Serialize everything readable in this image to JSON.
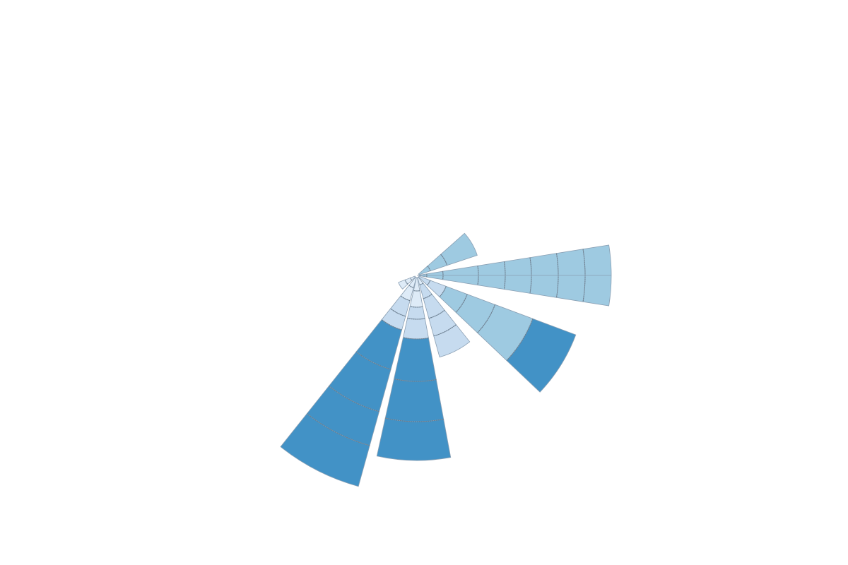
{
  "chart_data": {
    "type": "rose",
    "title": "",
    "legend": "none",
    "grid": false,
    "angle_unit": "degrees_clockwise_from_east",
    "radius_unit": "relative",
    "colors": {
      "dark": "#4292c6",
      "mid": "#9ecae1",
      "light": "#c6dbef",
      "pale": "#deebf7",
      "outline": "#8a9fb3",
      "band_separator": "#6b7d8d"
    },
    "wedges": [
      {
        "center_deg": -30,
        "width_deg": 23,
        "bands": [
          {
            "r": 20,
            "color": "mid"
          },
          {
            "r": 45,
            "color": "mid"
          },
          {
            "r": 90,
            "color": "mid"
          }
        ]
      },
      {
        "center_deg": 0,
        "width_deg": 18,
        "bands": [
          {
            "r": 14,
            "color": "mid"
          },
          {
            "r": 37,
            "color": "mid"
          },
          {
            "r": 87,
            "color": "mid"
          },
          {
            "r": 125,
            "color": "mid"
          },
          {
            "r": 162,
            "color": "mid"
          },
          {
            "r": 200,
            "color": "mid"
          },
          {
            "r": 238,
            "color": "mid"
          },
          {
            "r": 275,
            "color": "mid"
          }
        ]
      },
      {
        "center_deg": 32,
        "width_deg": 23,
        "bands": [
          {
            "r": 20,
            "color": "light"
          },
          {
            "r": 44,
            "color": "light"
          },
          {
            "r": 76,
            "color": "mid"
          },
          {
            "r": 118,
            "color": "mid"
          },
          {
            "r": 175,
            "color": "mid"
          },
          {
            "r": 240,
            "color": "dark"
          }
        ]
      },
      {
        "center_deg": 63,
        "width_deg": 23,
        "bands": [
          {
            "r": 14,
            "color": "pale"
          },
          {
            "r": 34,
            "color": "light"
          },
          {
            "r": 63,
            "color": "light"
          },
          {
            "r": 89,
            "color": "light"
          },
          {
            "r": 120,
            "color": "light"
          }
        ]
      },
      {
        "center_deg": 91,
        "width_deg": 23,
        "bands": [
          {
            "r": 22,
            "color": "pale"
          },
          {
            "r": 45,
            "color": "pale"
          },
          {
            "r": 62,
            "color": "light"
          },
          {
            "r": 90,
            "color": "light"
          },
          {
            "r": 150,
            "color": "dark"
          },
          {
            "r": 207,
            "color": "dark"
          },
          {
            "r": 262,
            "color": "dark"
          }
        ]
      },
      {
        "center_deg": 117,
        "width_deg": 23,
        "bands": [
          {
            "r": 18,
            "color": "pale"
          },
          {
            "r": 37,
            "color": "pale"
          },
          {
            "r": 60,
            "color": "light"
          },
          {
            "r": 80,
            "color": "light"
          },
          {
            "r": 138,
            "color": "dark"
          },
          {
            "r": 200,
            "color": "dark"
          },
          {
            "r": 250,
            "color": "dark"
          },
          {
            "r": 310,
            "color": "dark"
          }
        ]
      },
      {
        "center_deg": 148,
        "width_deg": 23,
        "bands": [
          {
            "r": 10,
            "color": "pale"
          },
          {
            "r": 18,
            "color": "pale"
          },
          {
            "r": 28,
            "color": "pale"
          }
        ]
      }
    ]
  }
}
